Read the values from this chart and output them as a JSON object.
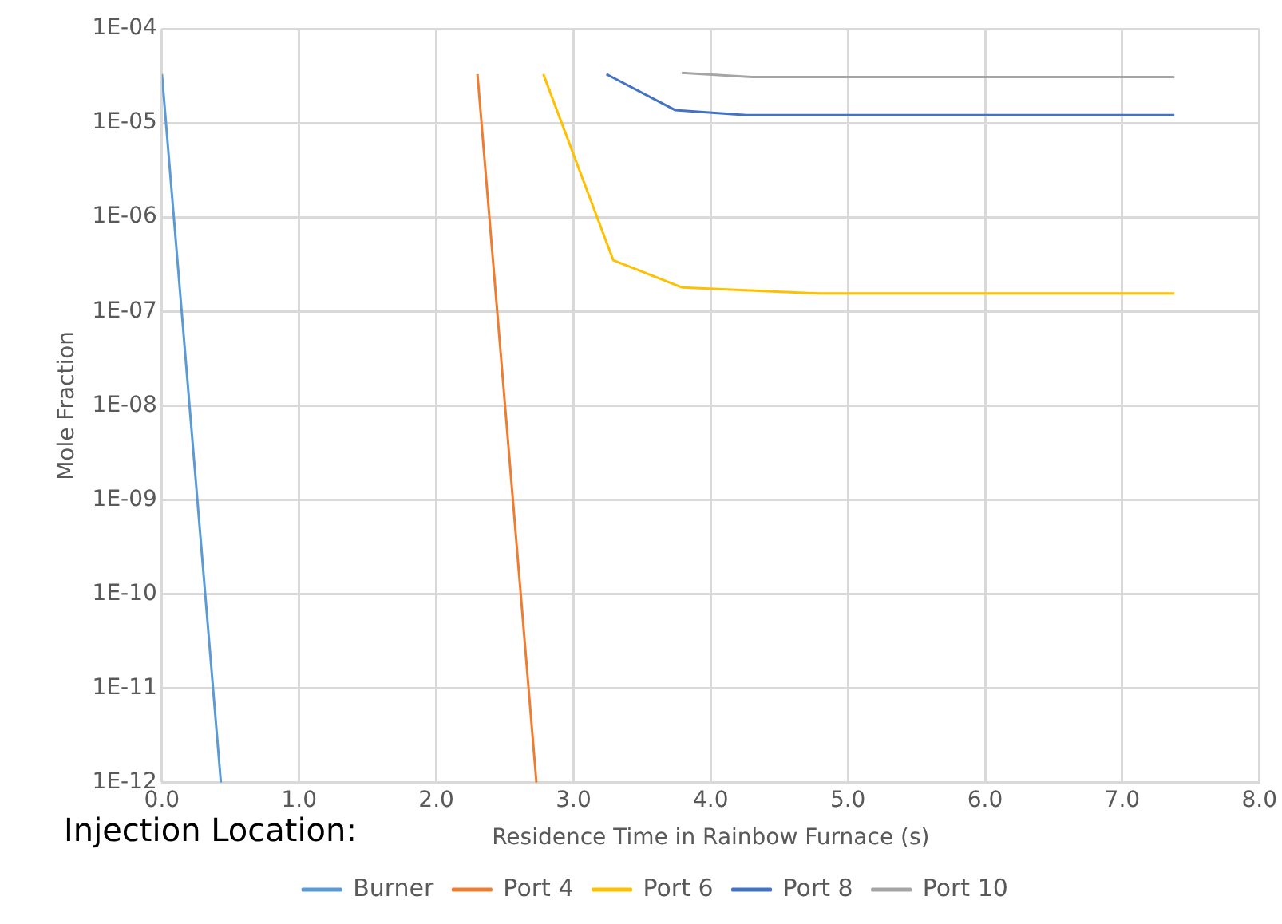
{
  "chart_data": {
    "type": "line",
    "xlabel": "Residence Time in Rainbow Furnace (s)",
    "ylabel": "Mole Fraction",
    "legend_title": "Injection Location:",
    "series": [
      {
        "name": "Burner",
        "color": "#5b9bd5",
        "x": [
          0,
          0.43
        ],
        "values": [
          3.3e-05,
          1e-12
        ]
      },
      {
        "name": "Port 4",
        "color": "#ed7d31",
        "x": [
          2.3,
          2.73
        ],
        "values": [
          3.3e-05,
          1e-12
        ]
      },
      {
        "name": "Port 6",
        "color": "#ffc000",
        "x": [
          2.78,
          3.29,
          3.79,
          4.8,
          7.38
        ],
        "values": [
          3.3e-05,
          3.5e-07,
          1.8e-07,
          1.55e-07,
          1.55e-07
        ]
      },
      {
        "name": "Port 8",
        "color": "#4472c4",
        "x": [
          3.24,
          3.74,
          4.26,
          7.38
        ],
        "values": [
          3.3e-05,
          1.37e-05,
          1.21e-05,
          1.21e-05
        ]
      },
      {
        "name": "Port 10",
        "color": "#a5a5a5",
        "x": [
          3.79,
          4.3,
          7.38
        ],
        "values": [
          3.4e-05,
          3.08e-05,
          3.08e-05
        ]
      }
    ],
    "xlim": [
      0,
      8
    ],
    "xticks": [
      {
        "value": 0,
        "label": "0.0"
      },
      {
        "value": 1,
        "label": "1.0"
      },
      {
        "value": 2,
        "label": "2.0"
      },
      {
        "value": 3,
        "label": "3.0"
      },
      {
        "value": 4,
        "label": "4.0"
      },
      {
        "value": 5,
        "label": "5.0"
      },
      {
        "value": 6,
        "label": "6.0"
      },
      {
        "value": 7,
        "label": "7.0"
      },
      {
        "value": 8,
        "label": "8.0"
      }
    ],
    "ylim": [
      1e-12,
      0.0001
    ],
    "yticks": [
      {
        "value": 1e-12,
        "label": "1E-12"
      },
      {
        "value": 1e-11,
        "label": "1E-11"
      },
      {
        "value": 1e-10,
        "label": "1E-10"
      },
      {
        "value": 1e-09,
        "label": "1E-09"
      },
      {
        "value": 1e-08,
        "label": "1E-08"
      },
      {
        "value": 1e-07,
        "label": "1E-07"
      },
      {
        "value": 1e-06,
        "label": "1E-06"
      },
      {
        "value": 1e-05,
        "label": "1E-05"
      },
      {
        "value": 0.0001,
        "label": "1E-04"
      }
    ],
    "log": "y",
    "grid": true,
    "legend": "bottom",
    "marker": "none",
    "line_style": "solid"
  }
}
